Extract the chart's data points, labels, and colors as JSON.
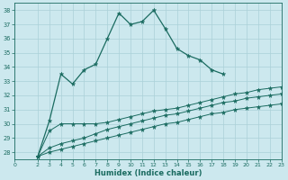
{
  "xlabel": "Humidex (Indice chaleur)",
  "background_color": "#cce8ee",
  "grid_color": "#aad0d8",
  "line_color": "#1a6b60",
  "xlim": [
    0,
    23
  ],
  "ylim": [
    27.5,
    38.5
  ],
  "yticks": [
    28,
    29,
    30,
    31,
    32,
    33,
    34,
    35,
    36,
    37,
    38
  ],
  "xticks": [
    0,
    2,
    3,
    4,
    5,
    6,
    7,
    8,
    9,
    10,
    11,
    12,
    13,
    14,
    15,
    16,
    17,
    18,
    19,
    20,
    21,
    22,
    23
  ],
  "series": [
    {
      "x": [
        2,
        3,
        4,
        5,
        6,
        7,
        8,
        9,
        10,
        11,
        12,
        13,
        14,
        15,
        16,
        17,
        18
      ],
      "y": [
        27.7,
        30.2,
        33.5,
        32.8,
        33.8,
        34.2,
        36.0,
        37.8,
        37.0,
        37.2,
        38.0,
        36.7,
        35.3,
        34.8,
        34.5,
        33.8,
        33.5
      ]
    },
    {
      "x": [
        2,
        3,
        4,
        5,
        6,
        7,
        8,
        9,
        10,
        11,
        12,
        13,
        14,
        15,
        16,
        17,
        18,
        19,
        20,
        21,
        22,
        23
      ],
      "y": [
        27.7,
        29.5,
        30.0,
        30.0,
        30.0,
        30.0,
        30.1,
        30.3,
        30.5,
        30.7,
        30.9,
        31.0,
        31.1,
        31.3,
        31.5,
        31.7,
        31.9,
        32.1,
        32.2,
        32.4,
        32.5,
        32.6
      ]
    },
    {
      "x": [
        2,
        3,
        4,
        5,
        6,
        7,
        8,
        9,
        10,
        11,
        12,
        13,
        14,
        15,
        16,
        17,
        18,
        19,
        20,
        21,
        22,
        23
      ],
      "y": [
        27.7,
        28.3,
        28.6,
        28.8,
        29.0,
        29.3,
        29.6,
        29.8,
        30.0,
        30.2,
        30.4,
        30.6,
        30.7,
        30.9,
        31.1,
        31.3,
        31.5,
        31.6,
        31.8,
        31.9,
        32.0,
        32.1
      ]
    },
    {
      "x": [
        2,
        3,
        4,
        5,
        6,
        7,
        8,
        9,
        10,
        11,
        12,
        13,
        14,
        15,
        16,
        17,
        18,
        19,
        20,
        21,
        22,
        23
      ],
      "y": [
        27.7,
        28.0,
        28.2,
        28.4,
        28.6,
        28.8,
        29.0,
        29.2,
        29.4,
        29.6,
        29.8,
        30.0,
        30.1,
        30.3,
        30.5,
        30.7,
        30.8,
        31.0,
        31.1,
        31.2,
        31.3,
        31.4
      ]
    }
  ]
}
